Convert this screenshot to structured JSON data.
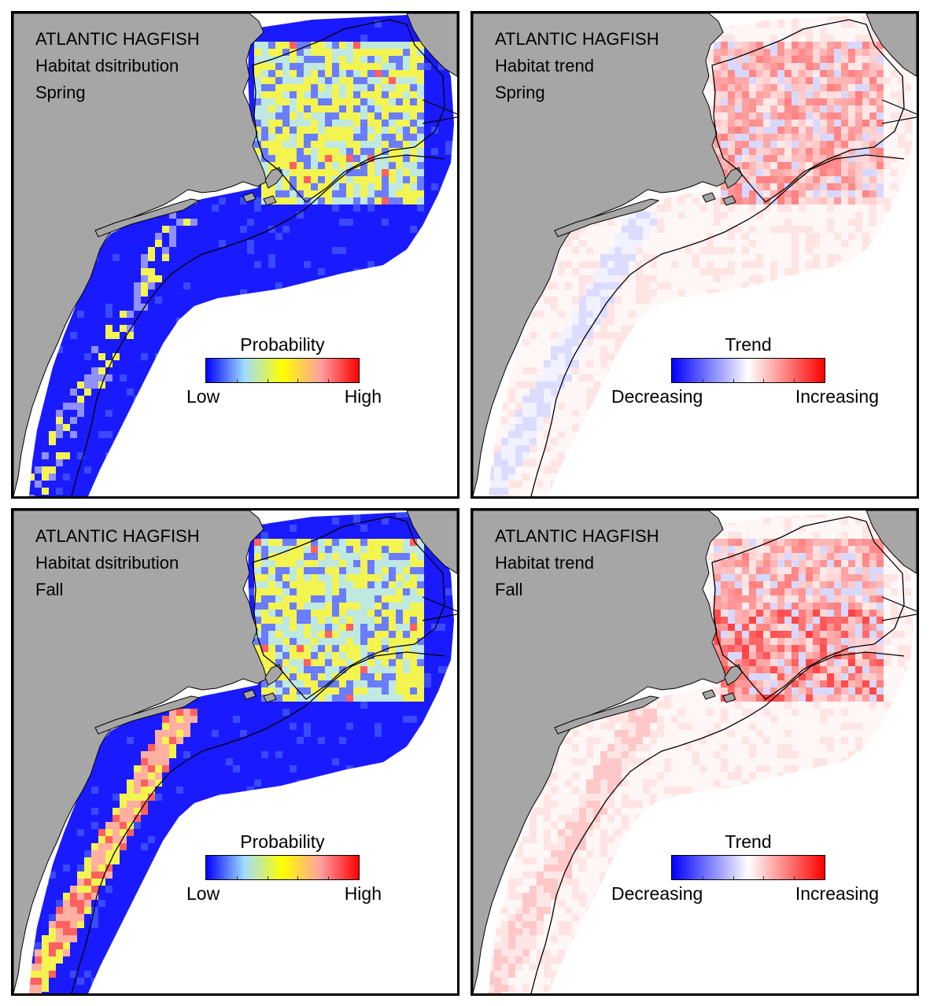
{
  "panels": [
    {
      "species": "ATLANTIC HAGFISH",
      "measure": "Habitat dsitribution",
      "season": "Spring",
      "legend": {
        "title": "Probability",
        "low_label": "Low",
        "high_label": "High",
        "gradient": [
          "#0000ff",
          "#9fdcff",
          "#ffff00",
          "#ffa0a0",
          "#ff0000"
        ]
      }
    },
    {
      "species": "ATLANTIC HAGFISH",
      "measure": "Habitat trend",
      "season": "Spring",
      "legend": {
        "title": "Trend",
        "low_label": "Decreasing",
        "high_label": "Increasing",
        "gradient": [
          "#0000ff",
          "#8080ff",
          "#ffffff",
          "#ff8080",
          "#ff0000"
        ]
      }
    },
    {
      "species": "ATLANTIC HAGFISH",
      "measure": "Habitat dsitribution",
      "season": "Fall",
      "legend": {
        "title": "Probability",
        "low_label": "Low",
        "high_label": "High",
        "gradient": [
          "#0000ff",
          "#9fdcff",
          "#ffff00",
          "#ffa0a0",
          "#ff0000"
        ]
      }
    },
    {
      "species": "ATLANTIC HAGFISH",
      "measure": "Habitat trend",
      "season": "Fall",
      "legend": {
        "title": "Trend",
        "low_label": "Decreasing",
        "high_label": "Increasing",
        "gradient": [
          "#0000ff",
          "#8080ff",
          "#ffffff",
          "#ff8080",
          "#ff0000"
        ]
      }
    }
  ],
  "colors": {
    "land": "#a6a6a6",
    "ocean": "#ffffff",
    "contour": "#000000",
    "shelf_low": "#1a1aff",
    "shelf_high_yellow": "#f4f450",
    "trend_pink": "#ffe4e4"
  }
}
